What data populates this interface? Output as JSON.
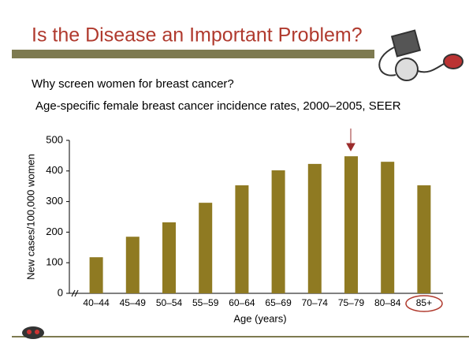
{
  "header": {
    "title": "Is the Disease an Important Problem?",
    "subtitle": "Why screen women for breast cancer?"
  },
  "chart_data": {
    "type": "bar",
    "title": "Age-specific female breast cancer incidence rates, 2000–2005, SEER",
    "x_label": "Age (years)",
    "y_label": "New cases/100,000 women",
    "categories": [
      "40–44",
      "45–49",
      "50–54",
      "55–59",
      "60–64",
      "65–69",
      "70–74",
      "75–79",
      "80–84",
      "85+"
    ],
    "values": [
      118,
      185,
      232,
      296,
      353,
      402,
      423,
      448,
      430,
      353
    ],
    "color": "#8f7a22",
    "ylim": [
      0,
      500
    ],
    "yticks": [
      0,
      100,
      200,
      300,
      400,
      500
    ]
  }
}
